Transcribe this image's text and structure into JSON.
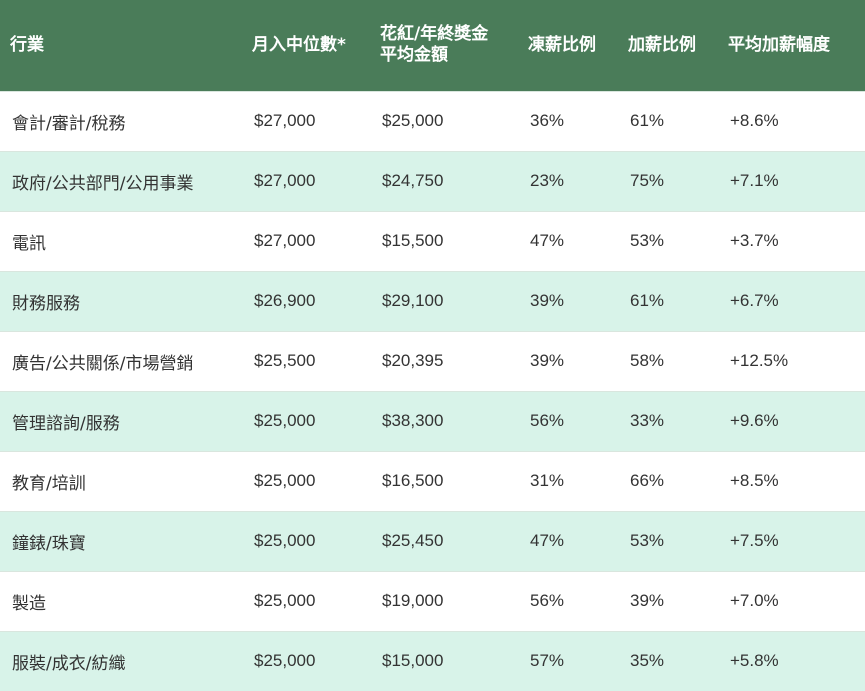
{
  "colors": {
    "header_bg": "#4a7c59",
    "alt_row_bg": "#d8f3e9",
    "text": "#333333"
  },
  "headers": {
    "industry": "行業",
    "median": "月入中位數*",
    "bonus_line1": "花紅/年終獎金",
    "bonus_line2": "平均金額",
    "freeze": "凍薪比例",
    "raise": "加薪比例",
    "avg_raise": "平均加薪幅度"
  },
  "rows": [
    {
      "industry": "會計/審計/稅務",
      "median": "$27,000",
      "bonus": "$25,000",
      "freeze": "36%",
      "raise": "61%",
      "avg_raise": "+8.6%"
    },
    {
      "industry": "政府/公共部門/公用事業",
      "median": "$27,000",
      "bonus": "$24,750",
      "freeze": "23%",
      "raise": "75%",
      "avg_raise": "+7.1%"
    },
    {
      "industry": "電訊",
      "median": "$27,000",
      "bonus": "$15,500",
      "freeze": "47%",
      "raise": "53%",
      "avg_raise": "+3.7%"
    },
    {
      "industry": "財務服務",
      "median": "$26,900",
      "bonus": "$29,100",
      "freeze": "39%",
      "raise": "61%",
      "avg_raise": "+6.7%"
    },
    {
      "industry": "廣告/公共關係/市場營銷",
      "median": "$25,500",
      "bonus": "$20,395",
      "freeze": "39%",
      "raise": "58%",
      "avg_raise": "+12.5%"
    },
    {
      "industry": "管理諮詢/服務",
      "median": "$25,000",
      "bonus": "$38,300",
      "freeze": "56%",
      "raise": "33%",
      "avg_raise": "+9.6%"
    },
    {
      "industry": "教育/培訓",
      "median": "$25,000",
      "bonus": "$16,500",
      "freeze": "31%",
      "raise": "66%",
      "avg_raise": "+8.5%"
    },
    {
      "industry": "鐘錶/珠寶",
      "median": "$25,000",
      "bonus": "$25,450",
      "freeze": "47%",
      "raise": "53%",
      "avg_raise": "+7.5%"
    },
    {
      "industry": "製造",
      "median": "$25,000",
      "bonus": "$19,000",
      "freeze": "56%",
      "raise": "39%",
      "avg_raise": "+7.0%"
    },
    {
      "industry": "服裝/成衣/紡織",
      "median": "$25,000",
      "bonus": "$15,000",
      "freeze": "57%",
      "raise": "35%",
      "avg_raise": "+5.8%"
    }
  ]
}
